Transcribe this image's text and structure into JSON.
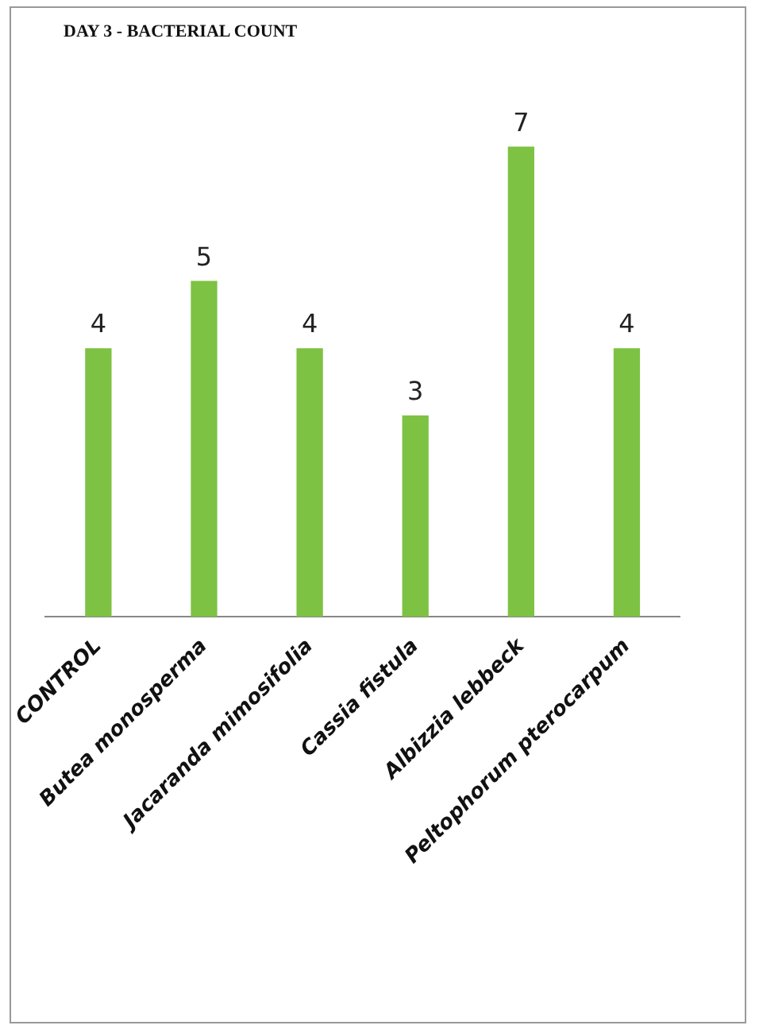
{
  "chart_data": {
    "type": "bar",
    "title": "DAY 3 - BACTERIAL COUNT",
    "categories": [
      "CONTROL",
      "Butea monosperma",
      "Jacaranda mimosifolia",
      "Cassia fistula",
      "Albizzia lebbeck",
      "Peltophorum pterocarpum"
    ],
    "values": [
      4,
      5,
      4,
      3,
      7,
      4
    ],
    "color": "#7dc242",
    "data_labels": true,
    "grid": false,
    "legend": false
  }
}
